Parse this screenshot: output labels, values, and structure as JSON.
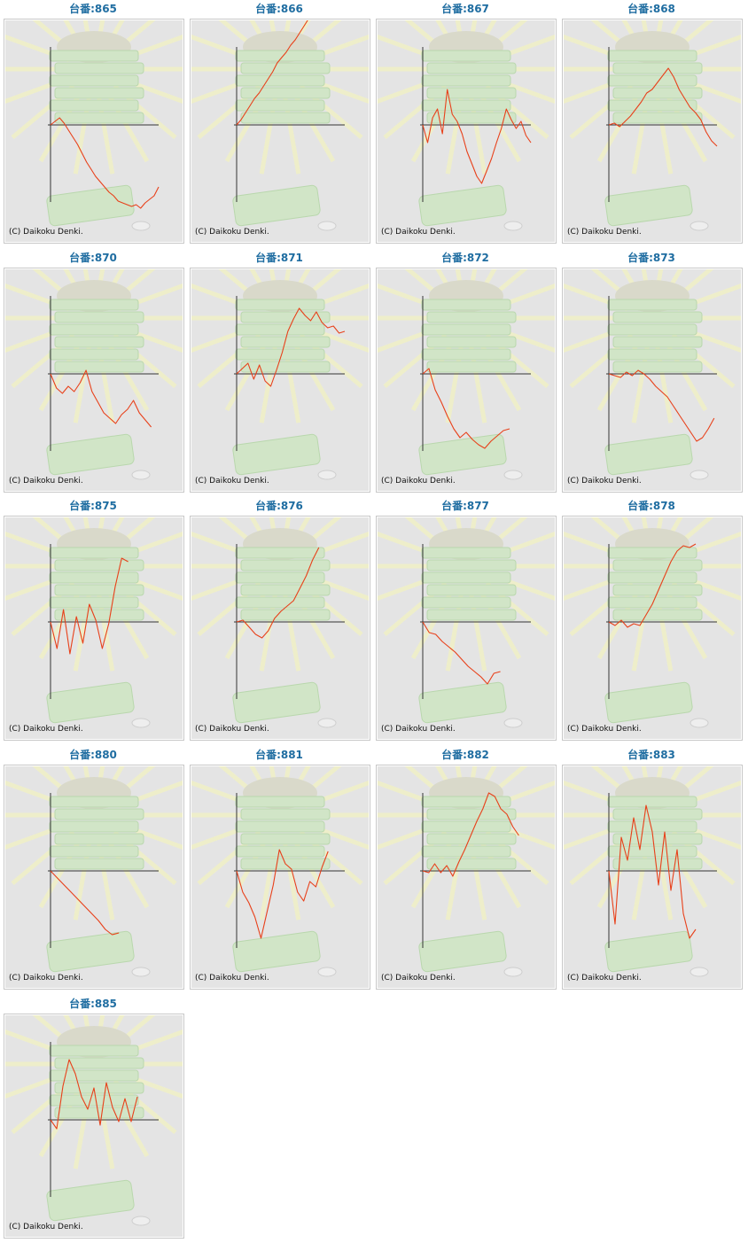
{
  "page": {
    "title_prefix": "台番:"
  },
  "copyright": "(C) Daikoku Denki.",
  "colors": {
    "title": "#1f6da1",
    "line": "#e8401a",
    "axis": "#333333",
    "panel_bg": "#e4e4e4",
    "art_green": "#cfe6c4",
    "art_rays": "#f0f0c8"
  },
  "chart_data": [
    {
      "type": "line",
      "title": "台番:865",
      "label": "865",
      "grid": false,
      "values": [
        0,
        4,
        8,
        2,
        -6,
        -14,
        -22,
        -32,
        -42,
        -50,
        -58,
        -64,
        -70,
        -76,
        -80,
        -86,
        -88,
        -90,
        -92,
        -90,
        -94,
        -88,
        -84,
        -80,
        -70
      ]
    },
    {
      "type": "line",
      "title": "台番:866",
      "label": "866",
      "grid": false,
      "values": [
        0,
        6,
        14,
        22,
        30,
        36,
        44,
        52,
        60,
        70,
        76,
        82,
        90,
        96,
        104,
        112,
        120,
        126,
        134,
        140,
        146,
        150,
        148,
        142,
        144
      ]
    },
    {
      "type": "line",
      "title": "台番:867",
      "label": "867",
      "grid": false,
      "values": [
        0,
        -20,
        8,
        18,
        -10,
        40,
        12,
        4,
        -10,
        -30,
        -44,
        -58,
        -66,
        -52,
        -38,
        -20,
        -4,
        18,
        6,
        -4,
        4,
        -12,
        -20
      ]
    },
    {
      "type": "line",
      "title": "台番:868",
      "label": "868",
      "grid": false,
      "values": [
        0,
        2,
        -2,
        4,
        10,
        18,
        26,
        36,
        40,
        48,
        56,
        64,
        54,
        40,
        30,
        20,
        14,
        6,
        -8,
        -18,
        -24
      ]
    },
    {
      "type": "line",
      "title": "台番:870",
      "label": "870",
      "grid": false,
      "values": [
        0,
        -16,
        -22,
        -14,
        -20,
        -10,
        4,
        -20,
        -32,
        -44,
        -50,
        -56,
        -46,
        -40,
        -30,
        -44,
        -52,
        -60
      ]
    },
    {
      "type": "line",
      "title": "台番:871",
      "label": "871",
      "grid": false,
      "values": [
        0,
        6,
        12,
        -6,
        10,
        -8,
        -14,
        4,
        24,
        48,
        62,
        74,
        66,
        60,
        70,
        58,
        52,
        54,
        46,
        48
      ]
    },
    {
      "type": "line",
      "title": "台番:872",
      "label": "872",
      "grid": false,
      "values": [
        0,
        6,
        -18,
        -32,
        -48,
        -62,
        -72,
        -66,
        -74,
        -80,
        -84,
        -76,
        -70,
        -64,
        -62
      ]
    },
    {
      "type": "line",
      "title": "台番:873",
      "label": "873",
      "grid": false,
      "values": [
        0,
        -2,
        -4,
        2,
        -2,
        4,
        0,
        -6,
        -14,
        -20,
        -26,
        -36,
        -46,
        -56,
        -66,
        -76,
        -72,
        -62,
        -50
      ]
    },
    {
      "type": "line",
      "title": "台番:875",
      "label": "875",
      "grid": false,
      "values": [
        0,
        -30,
        14,
        -36,
        6,
        -24,
        20,
        2,
        -30,
        -2,
        40,
        72,
        68
      ]
    },
    {
      "type": "line",
      "title": "台番:876",
      "label": "876",
      "grid": false,
      "values": [
        0,
        2,
        -6,
        -14,
        -18,
        -10,
        4,
        12,
        18,
        24,
        38,
        52,
        70,
        84
      ]
    },
    {
      "type": "line",
      "title": "台番:877",
      "label": "877",
      "grid": false,
      "values": [
        0,
        -12,
        -14,
        -22,
        -28,
        -34,
        -42,
        -50,
        -56,
        -62,
        -70,
        -58,
        -56
      ]
    },
    {
      "type": "line",
      "title": "台番:878",
      "label": "878",
      "grid": false,
      "values": [
        0,
        -4,
        2,
        -6,
        -2,
        -4,
        8,
        20,
        36,
        52,
        68,
        80,
        86,
        84,
        88
      ]
    },
    {
      "type": "line",
      "title": "台番:880",
      "label": "880",
      "grid": false,
      "values": [
        0,
        -8,
        -16,
        -24,
        -32,
        -40,
        -48,
        -56,
        -66,
        -72,
        -70
      ]
    },
    {
      "type": "line",
      "title": "台番:881",
      "label": "881",
      "grid": false,
      "values": [
        0,
        -24,
        -36,
        -52,
        -76,
        -46,
        -16,
        24,
        8,
        2,
        -24,
        -34,
        -12,
        -18,
        4,
        22
      ]
    },
    {
      "type": "line",
      "title": "台番:882",
      "label": "882",
      "grid": false,
      "values": [
        0,
        -2,
        8,
        -2,
        6,
        -6,
        10,
        24,
        40,
        56,
        70,
        88,
        84,
        70,
        64,
        50,
        40
      ]
    },
    {
      "type": "line",
      "title": "台番:883",
      "label": "883",
      "grid": false,
      "values": [
        0,
        -60,
        38,
        12,
        60,
        24,
        74,
        44,
        -16,
        44,
        -22,
        24,
        -48,
        -76,
        -66
      ]
    },
    {
      "type": "line",
      "title": "台番:885",
      "label": "885",
      "grid": false,
      "values": [
        0,
        -10,
        38,
        68,
        52,
        26,
        12,
        36,
        -6,
        42,
        14,
        -2,
        24,
        -2,
        26
      ]
    }
  ]
}
